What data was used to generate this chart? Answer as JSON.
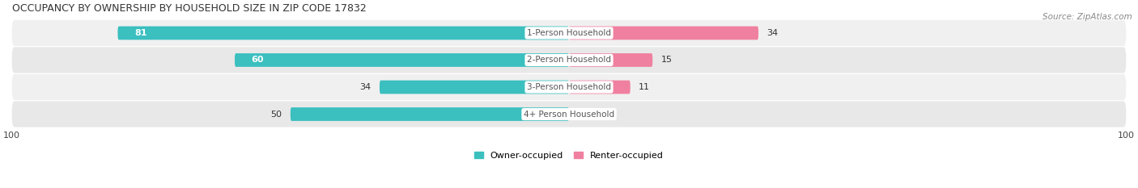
{
  "title": "OCCUPANCY BY OWNERSHIP BY HOUSEHOLD SIZE IN ZIP CODE 17832",
  "source": "Source: ZipAtlas.com",
  "categories": [
    "1-Person Household",
    "2-Person Household",
    "3-Person Household",
    "4+ Person Household"
  ],
  "owner_values": [
    81,
    60,
    34,
    50
  ],
  "renter_values": [
    34,
    15,
    11,
    0
  ],
  "owner_color": "#3BBFBF",
  "renter_color": "#F080A0",
  "axis_max": 100,
  "background_color": "#FFFFFF",
  "row_bg_even": "#F0F0F0",
  "row_bg_odd": "#E8E8E8",
  "center_label_bg": "#FFFFFF",
  "center_label_color": "#555555",
  "title_fontsize": 9,
  "source_fontsize": 7.5,
  "bar_height": 0.5,
  "legend_owner": "Owner-occupied",
  "legend_renter": "Renter-occupied"
}
